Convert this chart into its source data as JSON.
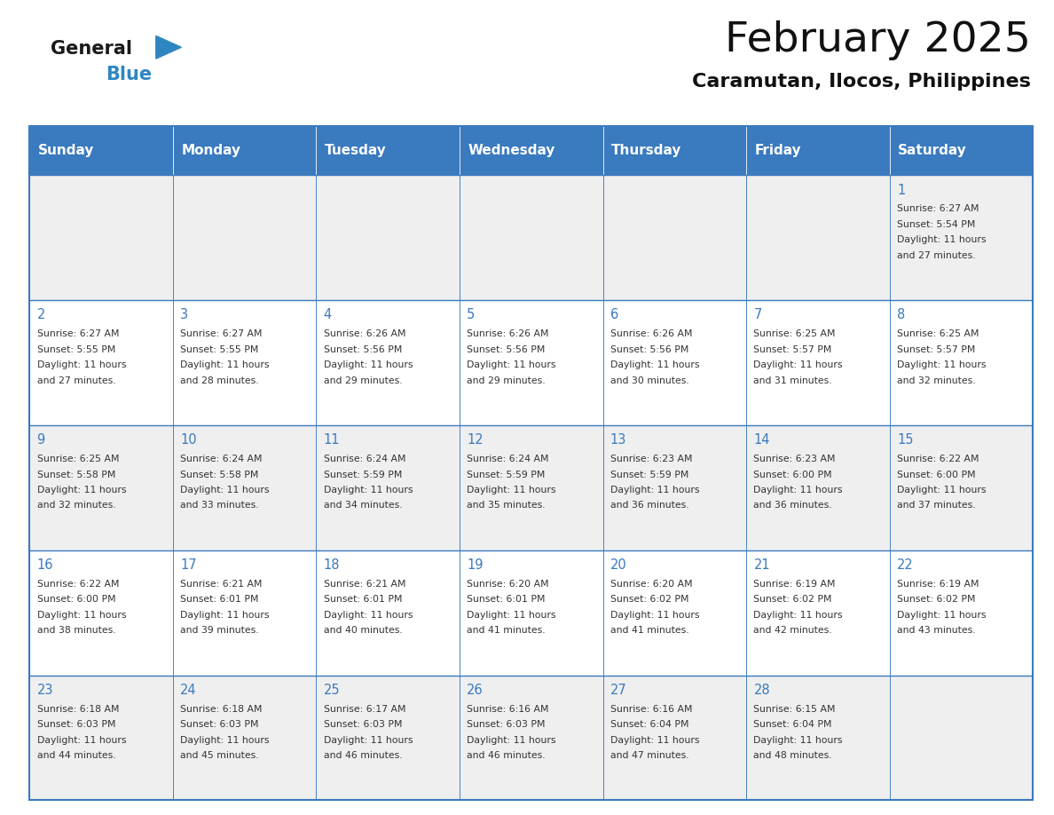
{
  "title": "February 2025",
  "subtitle": "Caramutan, Ilocos, Philippines",
  "days_of_week": [
    "Sunday",
    "Monday",
    "Tuesday",
    "Wednesday",
    "Thursday",
    "Friday",
    "Saturday"
  ],
  "header_bg": "#3a7abf",
  "header_text": "#ffffff",
  "cell_bg_row0": "#efefef",
  "cell_bg_row1": "#ffffff",
  "border_color": "#3a7abf",
  "day_number_color": "#3a7abf",
  "text_color": "#333333",
  "calendar_data": [
    [
      null,
      null,
      null,
      null,
      null,
      null,
      {
        "day": "1",
        "sunrise": "6:27 AM",
        "sunset": "5:54 PM",
        "daylight_h": "11",
        "daylight_m": "27"
      }
    ],
    [
      {
        "day": "2",
        "sunrise": "6:27 AM",
        "sunset": "5:55 PM",
        "daylight_h": "11",
        "daylight_m": "27"
      },
      {
        "day": "3",
        "sunrise": "6:27 AM",
        "sunset": "5:55 PM",
        "daylight_h": "11",
        "daylight_m": "28"
      },
      {
        "day": "4",
        "sunrise": "6:26 AM",
        "sunset": "5:56 PM",
        "daylight_h": "11",
        "daylight_m": "29"
      },
      {
        "day": "5",
        "sunrise": "6:26 AM",
        "sunset": "5:56 PM",
        "daylight_h": "11",
        "daylight_m": "29"
      },
      {
        "day": "6",
        "sunrise": "6:26 AM",
        "sunset": "5:56 PM",
        "daylight_h": "11",
        "daylight_m": "30"
      },
      {
        "day": "7",
        "sunrise": "6:25 AM",
        "sunset": "5:57 PM",
        "daylight_h": "11",
        "daylight_m": "31"
      },
      {
        "day": "8",
        "sunrise": "6:25 AM",
        "sunset": "5:57 PM",
        "daylight_h": "11",
        "daylight_m": "32"
      }
    ],
    [
      {
        "day": "9",
        "sunrise": "6:25 AM",
        "sunset": "5:58 PM",
        "daylight_h": "11",
        "daylight_m": "32"
      },
      {
        "day": "10",
        "sunrise": "6:24 AM",
        "sunset": "5:58 PM",
        "daylight_h": "11",
        "daylight_m": "33"
      },
      {
        "day": "11",
        "sunrise": "6:24 AM",
        "sunset": "5:59 PM",
        "daylight_h": "11",
        "daylight_m": "34"
      },
      {
        "day": "12",
        "sunrise": "6:24 AM",
        "sunset": "5:59 PM",
        "daylight_h": "11",
        "daylight_m": "35"
      },
      {
        "day": "13",
        "sunrise": "6:23 AM",
        "sunset": "5:59 PM",
        "daylight_h": "11",
        "daylight_m": "36"
      },
      {
        "day": "14",
        "sunrise": "6:23 AM",
        "sunset": "6:00 PM",
        "daylight_h": "11",
        "daylight_m": "36"
      },
      {
        "day": "15",
        "sunrise": "6:22 AM",
        "sunset": "6:00 PM",
        "daylight_h": "11",
        "daylight_m": "37"
      }
    ],
    [
      {
        "day": "16",
        "sunrise": "6:22 AM",
        "sunset": "6:00 PM",
        "daylight_h": "11",
        "daylight_m": "38"
      },
      {
        "day": "17",
        "sunrise": "6:21 AM",
        "sunset": "6:01 PM",
        "daylight_h": "11",
        "daylight_m": "39"
      },
      {
        "day": "18",
        "sunrise": "6:21 AM",
        "sunset": "6:01 PM",
        "daylight_h": "11",
        "daylight_m": "40"
      },
      {
        "day": "19",
        "sunrise": "6:20 AM",
        "sunset": "6:01 PM",
        "daylight_h": "11",
        "daylight_m": "41"
      },
      {
        "day": "20",
        "sunrise": "6:20 AM",
        "sunset": "6:02 PM",
        "daylight_h": "11",
        "daylight_m": "41"
      },
      {
        "day": "21",
        "sunrise": "6:19 AM",
        "sunset": "6:02 PM",
        "daylight_h": "11",
        "daylight_m": "42"
      },
      {
        "day": "22",
        "sunrise": "6:19 AM",
        "sunset": "6:02 PM",
        "daylight_h": "11",
        "daylight_m": "43"
      }
    ],
    [
      {
        "day": "23",
        "sunrise": "6:18 AM",
        "sunset": "6:03 PM",
        "daylight_h": "11",
        "daylight_m": "44"
      },
      {
        "day": "24",
        "sunrise": "6:18 AM",
        "sunset": "6:03 PM",
        "daylight_h": "11",
        "daylight_m": "45"
      },
      {
        "day": "25",
        "sunrise": "6:17 AM",
        "sunset": "6:03 PM",
        "daylight_h": "11",
        "daylight_m": "46"
      },
      {
        "day": "26",
        "sunrise": "6:16 AM",
        "sunset": "6:03 PM",
        "daylight_h": "11",
        "daylight_m": "46"
      },
      {
        "day": "27",
        "sunrise": "6:16 AM",
        "sunset": "6:04 PM",
        "daylight_h": "11",
        "daylight_m": "47"
      },
      {
        "day": "28",
        "sunrise": "6:15 AM",
        "sunset": "6:04 PM",
        "daylight_h": "11",
        "daylight_m": "48"
      },
      null
    ]
  ],
  "logo_general_color": "#1a1a1a",
  "logo_blue_color": "#2e86c1",
  "logo_triangle_color": "#2e86c1",
  "figsize": [
    11.88,
    9.18
  ],
  "dpi": 100
}
